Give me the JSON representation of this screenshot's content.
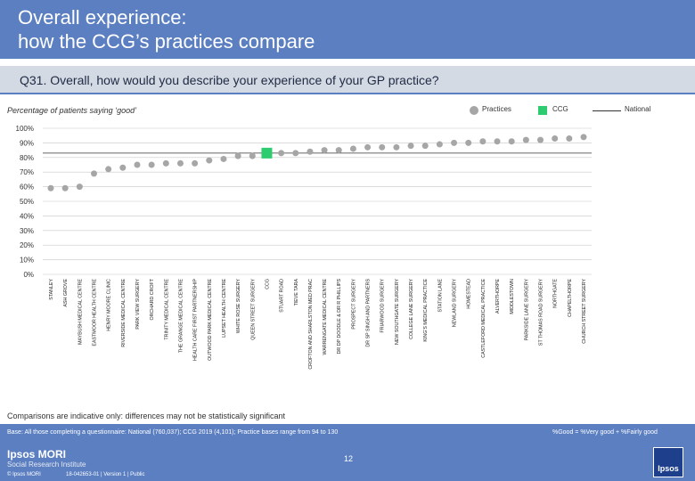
{
  "header": {
    "title_line1": "Overall experience:",
    "title_line2": "how the CCG’s practices compare"
  },
  "question": "Q31. Overall, how would you describe your experience of your GP practice?",
  "subtitle": "Percentage of patients saying ‘good’",
  "legend": {
    "practices": "Practices",
    "ccg": "CCG",
    "national": "National"
  },
  "colors": {
    "practice": "#a6a6a6",
    "ccg": "#2ecc71",
    "header": "#5b7fc1",
    "grid": "#c8c8c8"
  },
  "chart_data": {
    "type": "scatter",
    "title": "",
    "ylabel": "Percentage of patients saying ‘good’",
    "ylim": [
      0,
      100
    ],
    "yticks": [
      "0%",
      "10%",
      "20%",
      "30%",
      "40%",
      "50%",
      "60%",
      "70%",
      "80%",
      "90%",
      "100%"
    ],
    "categories": [
      "STANLEY",
      "ASH GROVE",
      "MAYBUSH MEDICAL CENTRE",
      "EASTMOOR HEALTH CENTRE",
      "HENRY MOORE CLINIC",
      "RIVERSIDE MEDICAL CENTRE",
      "PARK VIEW SURGERY",
      "ORCHARD CROFT",
      "TRINITY MEDICAL CENTRE",
      "THE GRANGE MEDICAL CENTRE",
      "HEALTH CARE FIRST PARTNERSHIP",
      "OUTWOOD PARK MEDICAL CENTRE",
      "LUPSET HEALTH CENTRE",
      "WHITE ROSE SURGERY",
      "QUEEN STREET SURGERY",
      "CCG",
      "STUART ROAD",
      "TIEVE TARA",
      "CROFTON AND SHARLSTON MED PRAC",
      "WARRENGATE MEDICAL CENTRE",
      "DR DP DOODLE & DR R PHILLIPS",
      "PROSPECT SURGERY",
      "DR SP SINGH AND PARTNERS",
      "FRIARWOOD SURGERY",
      "NEW SOUTHGATE SURGERY",
      "COLLEGE LANE SURGERY",
      "KING'S MEDICAL PRACTICE",
      "STATION LANE",
      "NEWLAND SURGERY",
      "HOMESTEAD",
      "CASTLEFORD MEDICAL PRACTICE",
      "ALVERTHORPE",
      "MIDDLESTOWN",
      "PARKSIDE LANE SURGERY",
      "ST THOMAS ROAD SURGERY",
      "NORTHGATE",
      "CHAPELTHORPE",
      "CHURCH STREET SURGERY"
    ],
    "values": [
      59,
      59,
      60,
      69,
      72,
      73,
      75,
      75,
      76,
      76,
      76,
      78,
      79,
      81,
      81,
      83,
      83,
      83,
      84,
      85,
      85,
      86,
      87,
      87,
      87,
      88,
      88,
      89,
      90,
      90,
      91,
      91,
      91,
      92,
      92,
      93,
      93,
      94
    ],
    "highlight": "CCG",
    "national": 83
  },
  "note": "Comparisons are indicative only: differences may not be statistically significant",
  "footer": {
    "base": "Base: All those completing a questionnaire: National (760,037); CCG 2019 (4,101); Practice bases range from 94 to 130",
    "formula": "%Good = %Very good + %Fairly good",
    "page_number": "12",
    "logo": "Ipsos MORI",
    "institute": "Social Research Institute",
    "copyright": "© Ipsos MORI",
    "jobref": "18-042653-01 | Version 1 | Public",
    "brand_box": "Ipsos"
  }
}
